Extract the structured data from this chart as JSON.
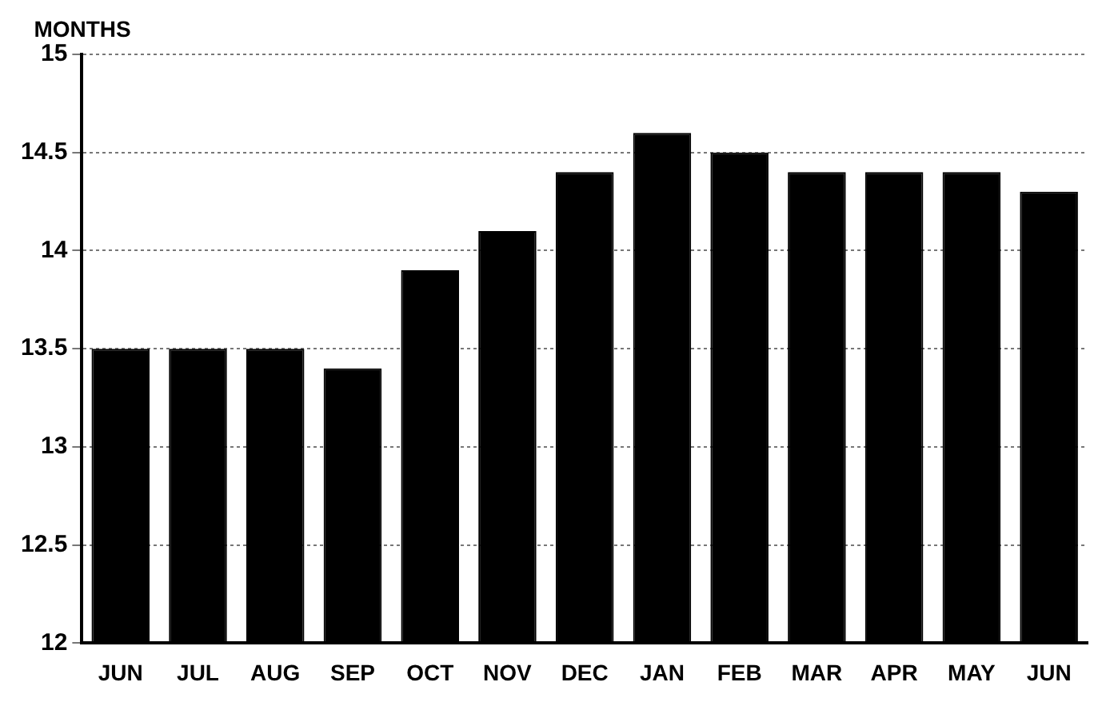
{
  "chart_data": {
    "type": "bar",
    "ylabel": "MONTHS",
    "categories": [
      "JUN",
      "JUL",
      "AUG",
      "SEP",
      "OCT",
      "NOV",
      "DEC",
      "JAN",
      "FEB",
      "MAR",
      "APR",
      "MAY",
      "JUN"
    ],
    "values": [
      13.5,
      13.5,
      13.5,
      13.4,
      13.9,
      14.1,
      14.4,
      14.6,
      14.5,
      14.4,
      14.4,
      14.4,
      14.3
    ],
    "color": "#000000",
    "ylim": [
      12,
      15
    ],
    "yticks": [
      12,
      12.5,
      13,
      13.5,
      14,
      14.5,
      15
    ],
    "grid": "y"
  }
}
